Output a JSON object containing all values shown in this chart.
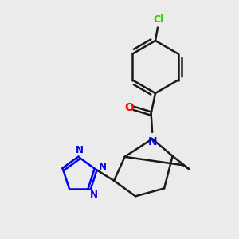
{
  "background_color": "#ebebeb",
  "bond_color": "#1a1a1a",
  "bond_width": 1.8,
  "cl_color": "#33cc00",
  "o_color": "#ff0000",
  "n_color": "#0000ee",
  "figsize": [
    3.0,
    3.0
  ],
  "dpi": 100,
  "xlim": [
    0,
    10
  ],
  "ylim": [
    0,
    10
  ]
}
